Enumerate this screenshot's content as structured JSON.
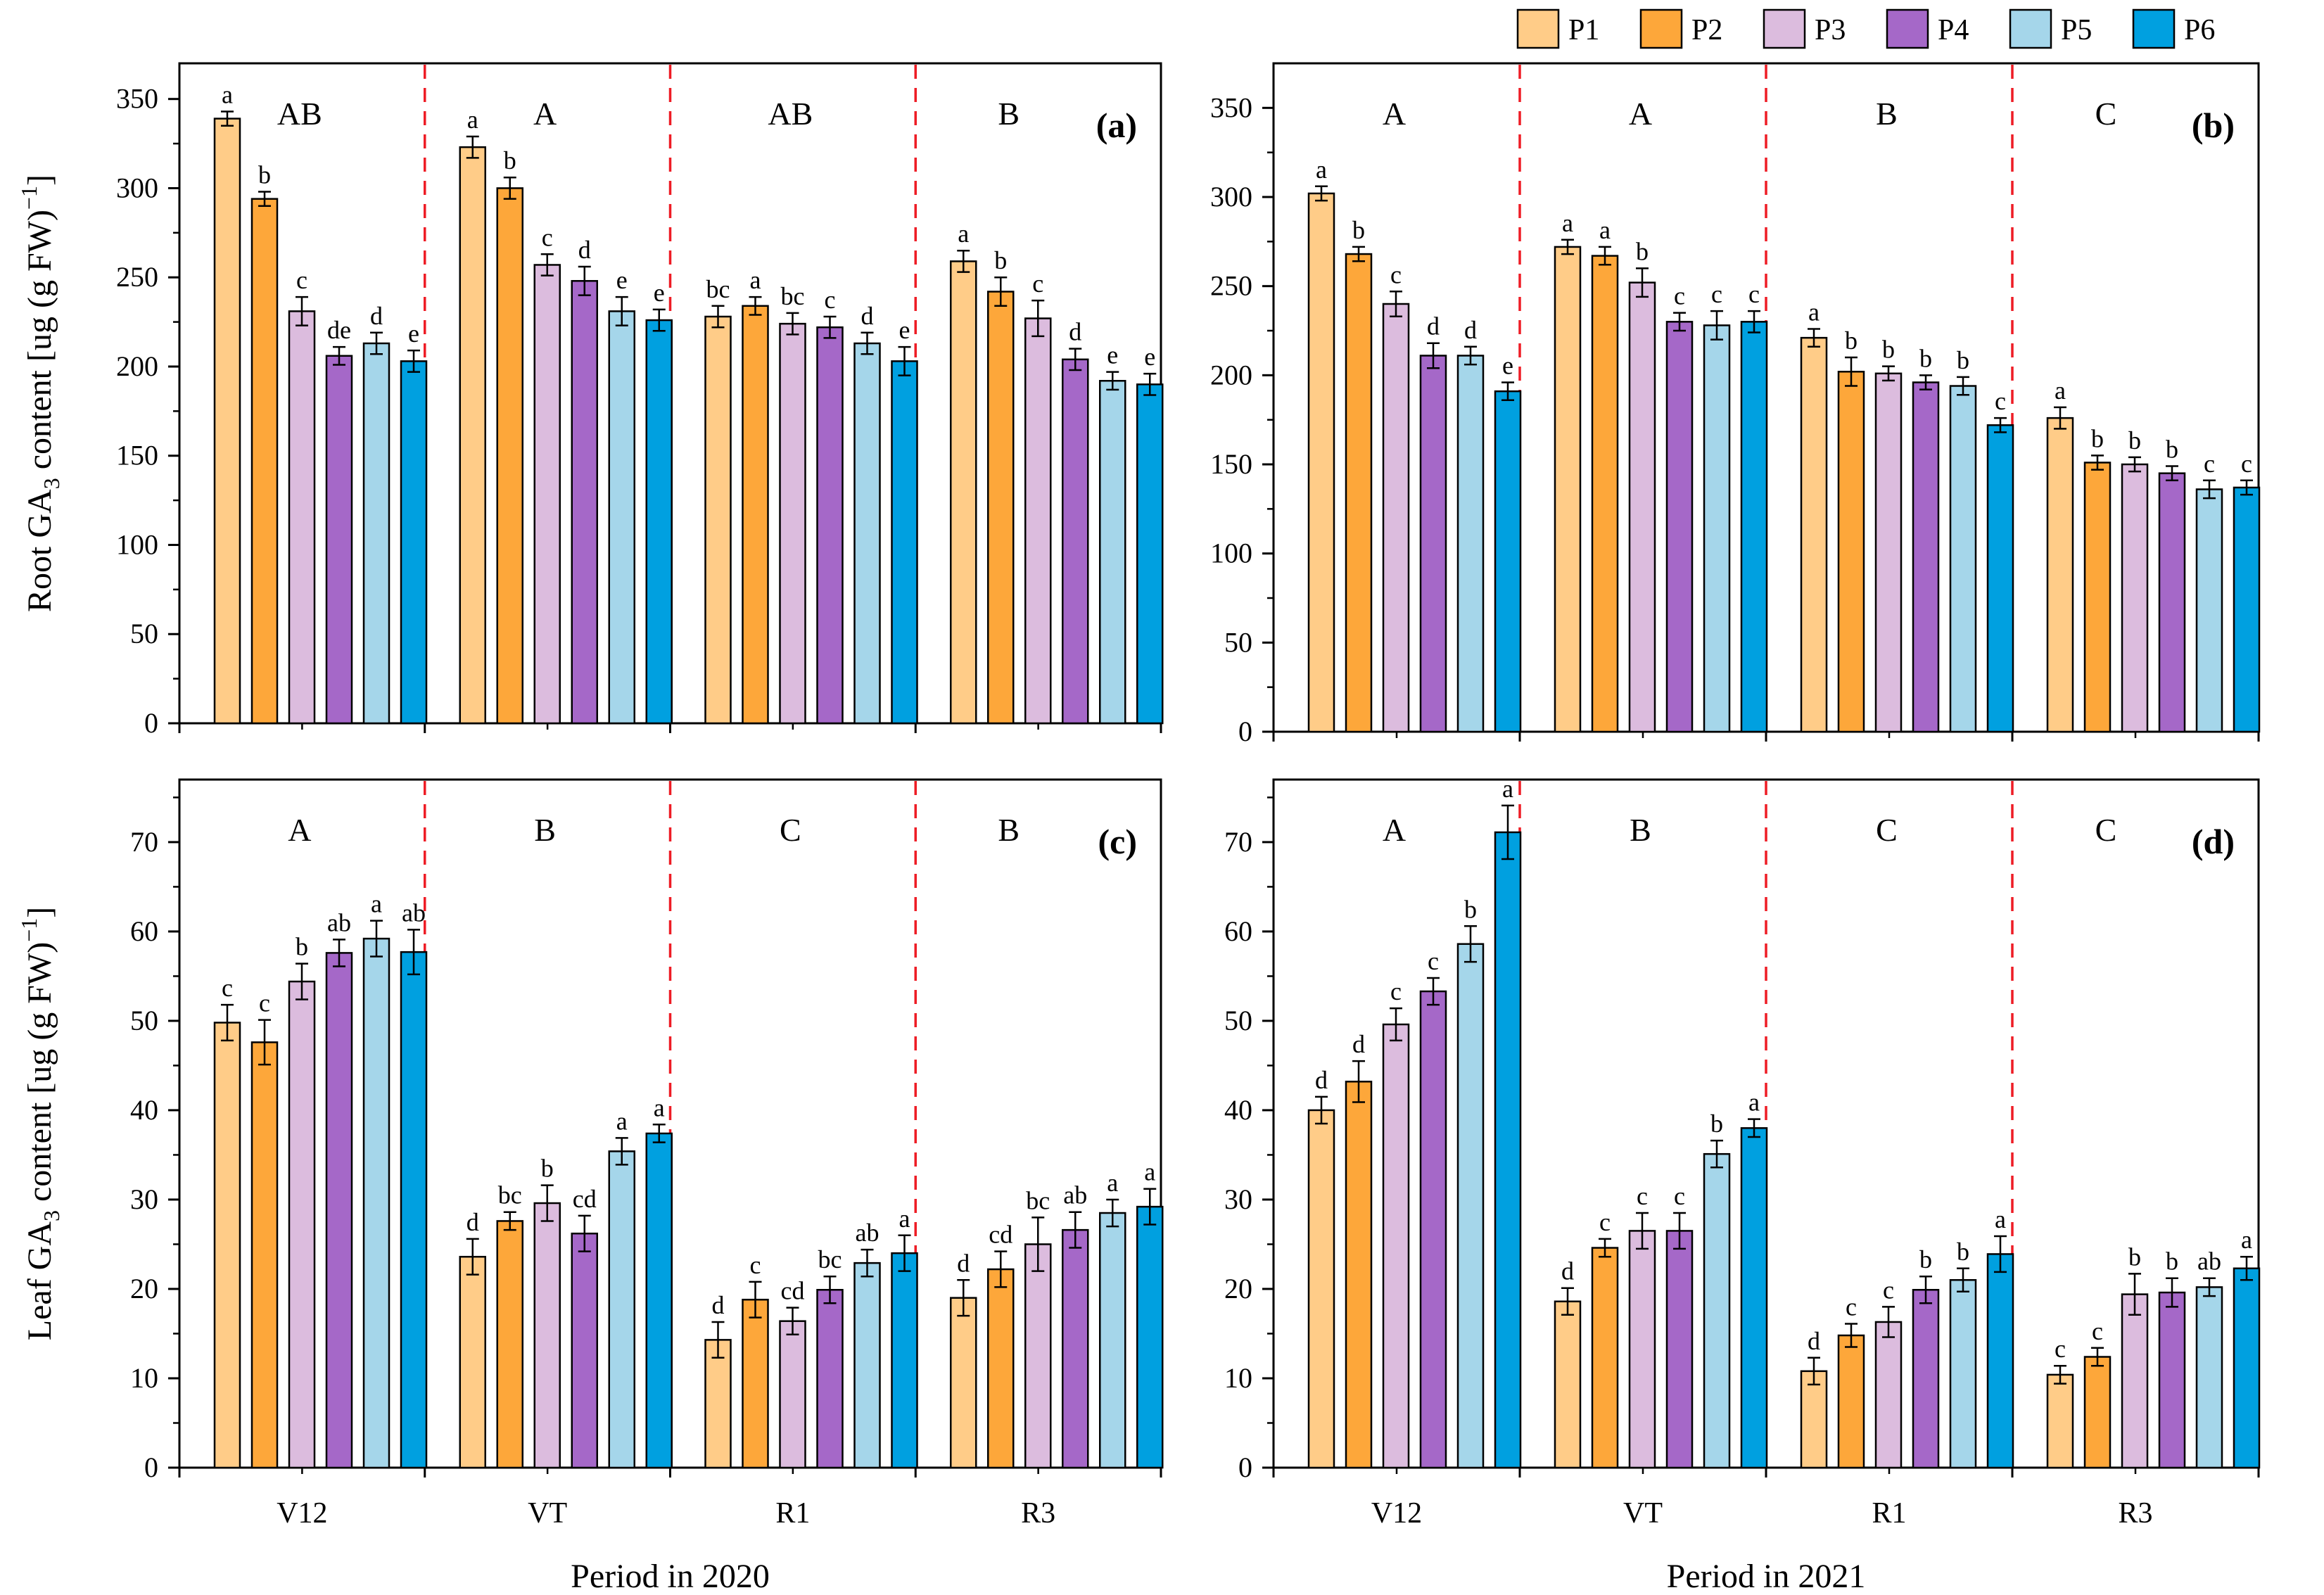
{
  "legend": {
    "position": "top-right",
    "items": [
      {
        "name": "P1",
        "color": "#FFCC88"
      },
      {
        "name": "P2",
        "color": "#FDA73A"
      },
      {
        "name": "P3",
        "color": "#DCBCDE"
      },
      {
        "name": "P4",
        "color": "#A568C8"
      },
      {
        "name": "P5",
        "color": "#A5D6EA"
      },
      {
        "name": "P6",
        "color": "#00A0E0"
      }
    ]
  },
  "chart_data": [
    {
      "type": "bar",
      "panel_label": "(a)",
      "ylabel": "Root GA3 content [ug (g FW)-1]",
      "ylabel_main": "Root GA",
      "ylabel_sub": "3",
      "ylabel_rest": " content  [ug (g FW)",
      "ylabel_sup": "−1",
      "ylabel_end": "]",
      "ylim": [
        0,
        370
      ],
      "yticks": [
        "0",
        "50",
        "100",
        "150",
        "200",
        "250",
        "300",
        "350"
      ],
      "yticks_values": [
        0,
        50,
        100,
        150,
        200,
        250,
        300,
        350
      ],
      "categories": [
        "V12",
        "VT",
        "R1",
        "R3"
      ],
      "group_labels": [
        "AB",
        "A",
        "AB",
        "B"
      ],
      "series": [
        {
          "name": "P1",
          "values": [
            339,
            323,
            228,
            259
          ],
          "errors": [
            4,
            6,
            6,
            6
          ],
          "letters": [
            "a",
            "a",
            "bc",
            "a"
          ]
        },
        {
          "name": "P2",
          "values": [
            294,
            300,
            234,
            242
          ],
          "errors": [
            4,
            6,
            5,
            8
          ],
          "letters": [
            "b",
            "b",
            "a",
            "b"
          ]
        },
        {
          "name": "P3",
          "values": [
            231,
            257,
            224,
            227
          ],
          "errors": [
            8,
            6,
            6,
            10
          ],
          "letters": [
            "c",
            "c",
            "bc",
            "c"
          ]
        },
        {
          "name": "P4",
          "values": [
            206,
            248,
            222,
            204
          ],
          "errors": [
            5,
            8,
            6,
            6
          ],
          "letters": [
            "de",
            "d",
            "c",
            "d"
          ]
        },
        {
          "name": "P5",
          "values": [
            213,
            231,
            213,
            192
          ],
          "errors": [
            6,
            8,
            6,
            5
          ],
          "letters": [
            "d",
            "e",
            "d",
            "e"
          ]
        },
        {
          "name": "P6",
          "values": [
            203,
            226,
            203,
            190
          ],
          "errors": [
            6,
            6,
            8,
            6
          ],
          "letters": [
            "e",
            "e",
            "e",
            "e"
          ]
        }
      ]
    },
    {
      "type": "bar",
      "panel_label": "(b)",
      "ylim": [
        0,
        375
      ],
      "yticks": [
        "0",
        "50",
        "100",
        "150",
        "200",
        "250",
        "300",
        "350"
      ],
      "yticks_values": [
        0,
        50,
        100,
        150,
        200,
        250,
        300,
        350
      ],
      "categories": [
        "V12",
        "VT",
        "R1",
        "R3"
      ],
      "group_labels": [
        "A",
        "A",
        "B",
        "C"
      ],
      "series": [
        {
          "name": "P1",
          "values": [
            302,
            272,
            221,
            176
          ],
          "errors": [
            4,
            4,
            5,
            6
          ],
          "letters": [
            "a",
            "a",
            "a",
            "a"
          ]
        },
        {
          "name": "P2",
          "values": [
            268,
            267,
            202,
            151
          ],
          "errors": [
            4,
            5,
            8,
            4
          ],
          "letters": [
            "b",
            "a",
            "b",
            "b"
          ]
        },
        {
          "name": "P3",
          "values": [
            240,
            252,
            201,
            150
          ],
          "errors": [
            7,
            8,
            4,
            4
          ],
          "letters": [
            "c",
            "b",
            "b",
            "b"
          ]
        },
        {
          "name": "P4",
          "values": [
            211,
            230,
            196,
            145
          ],
          "errors": [
            7,
            5,
            4,
            4
          ],
          "letters": [
            "d",
            "c",
            "b",
            "b"
          ]
        },
        {
          "name": "P5",
          "values": [
            211,
            228,
            194,
            136
          ],
          "errors": [
            5,
            8,
            5,
            5
          ],
          "letters": [
            "d",
            "c",
            "b",
            "c"
          ]
        },
        {
          "name": "P6",
          "values": [
            191,
            230,
            172,
            137
          ],
          "errors": [
            5,
            6,
            4,
            4
          ],
          "letters": [
            "e",
            "c",
            "c",
            "c"
          ]
        }
      ]
    },
    {
      "type": "bar",
      "panel_label": "(c)",
      "ylabel": "Leaf GA3 content [ug (g FW)-1]",
      "ylabel_main": "Leaf GA",
      "ylabel_sub": "3",
      "ylabel_rest": " content [ug (g FW)",
      "ylabel_sup": "−1",
      "ylabel_end": "]",
      "xlabel": "Period in 2020",
      "ylim": [
        0,
        77
      ],
      "yticks": [
        "0",
        "10",
        "20",
        "30",
        "40",
        "50",
        "60",
        "70"
      ],
      "yticks_values": [
        0,
        10,
        20,
        30,
        40,
        50,
        60,
        70
      ],
      "categories": [
        "V12",
        "VT",
        "R1",
        "R3"
      ],
      "group_labels": [
        "A",
        "B",
        "C",
        "B"
      ],
      "series": [
        {
          "name": "P1",
          "values": [
            49.8,
            23.6,
            14.3,
            19.0
          ],
          "errors": [
            2.0,
            2.0,
            2.0,
            2.0
          ],
          "letters": [
            "c",
            "d",
            "d",
            "d"
          ]
        },
        {
          "name": "P2",
          "values": [
            47.6,
            27.6,
            18.8,
            22.2
          ],
          "errors": [
            2.5,
            1.0,
            2.0,
            2.0
          ],
          "letters": [
            "c",
            "bc",
            "c",
            "cd"
          ]
        },
        {
          "name": "P3",
          "values": [
            54.4,
            29.6,
            16.4,
            25.0
          ],
          "errors": [
            2.0,
            2.0,
            1.5,
            3.0
          ],
          "letters": [
            "b",
            "b",
            "cd",
            "bc"
          ]
        },
        {
          "name": "P4",
          "values": [
            57.6,
            26.2,
            19.9,
            26.6
          ],
          "errors": [
            1.5,
            2.0,
            1.5,
            2.0
          ],
          "letters": [
            "ab",
            "cd",
            "bc",
            "ab"
          ]
        },
        {
          "name": "P5",
          "values": [
            59.2,
            35.4,
            22.9,
            28.5
          ],
          "errors": [
            2.0,
            1.5,
            1.5,
            1.5
          ],
          "letters": [
            "a",
            "a",
            "ab",
            "a"
          ]
        },
        {
          "name": "P6",
          "values": [
            57.7,
            37.4,
            24.0,
            29.2
          ],
          "errors": [
            2.5,
            1.0,
            2.0,
            2.0
          ],
          "letters": [
            "ab",
            "a",
            "a",
            "a"
          ]
        }
      ]
    },
    {
      "type": "bar",
      "panel_label": "(d)",
      "xlabel": "Period in 2021",
      "ylim": [
        0,
        77
      ],
      "yticks": [
        "0",
        "10",
        "20",
        "30",
        "40",
        "50",
        "60",
        "70"
      ],
      "yticks_values": [
        0,
        10,
        20,
        30,
        40,
        50,
        60,
        70
      ],
      "categories": [
        "V12",
        "VT",
        "R1",
        "R3"
      ],
      "group_labels": [
        "A",
        "B",
        "C",
        "C"
      ],
      "series": [
        {
          "name": "P1",
          "values": [
            40.0,
            18.6,
            10.8,
            10.4
          ],
          "errors": [
            1.5,
            1.5,
            1.5,
            1.0
          ],
          "letters": [
            "d",
            "d",
            "d",
            "c"
          ]
        },
        {
          "name": "P2",
          "values": [
            43.2,
            24.6,
            14.8,
            12.4
          ],
          "errors": [
            2.3,
            1.0,
            1.3,
            1.0
          ],
          "letters": [
            "d",
            "c",
            "c",
            "c"
          ]
        },
        {
          "name": "P3",
          "values": [
            49.6,
            26.5,
            16.3,
            19.4
          ],
          "errors": [
            1.8,
            2.0,
            1.7,
            2.3
          ],
          "letters": [
            "c",
            "c",
            "c",
            "b"
          ]
        },
        {
          "name": "P4",
          "values": [
            53.3,
            26.5,
            19.9,
            19.6
          ],
          "errors": [
            1.5,
            2.0,
            1.5,
            1.6
          ],
          "letters": [
            "c",
            "c",
            "b",
            "b"
          ]
        },
        {
          "name": "P5",
          "values": [
            58.6,
            35.1,
            21.0,
            20.2
          ],
          "errors": [
            2.0,
            1.5,
            1.3,
            1.0
          ],
          "letters": [
            "b",
            "b",
            "b",
            "ab"
          ]
        },
        {
          "name": "P6",
          "values": [
            71.1,
            38.0,
            23.9,
            22.3
          ],
          "errors": [
            3.0,
            1.0,
            2.0,
            1.3
          ],
          "letters": [
            "a",
            "a",
            "a",
            "a"
          ]
        }
      ]
    }
  ]
}
